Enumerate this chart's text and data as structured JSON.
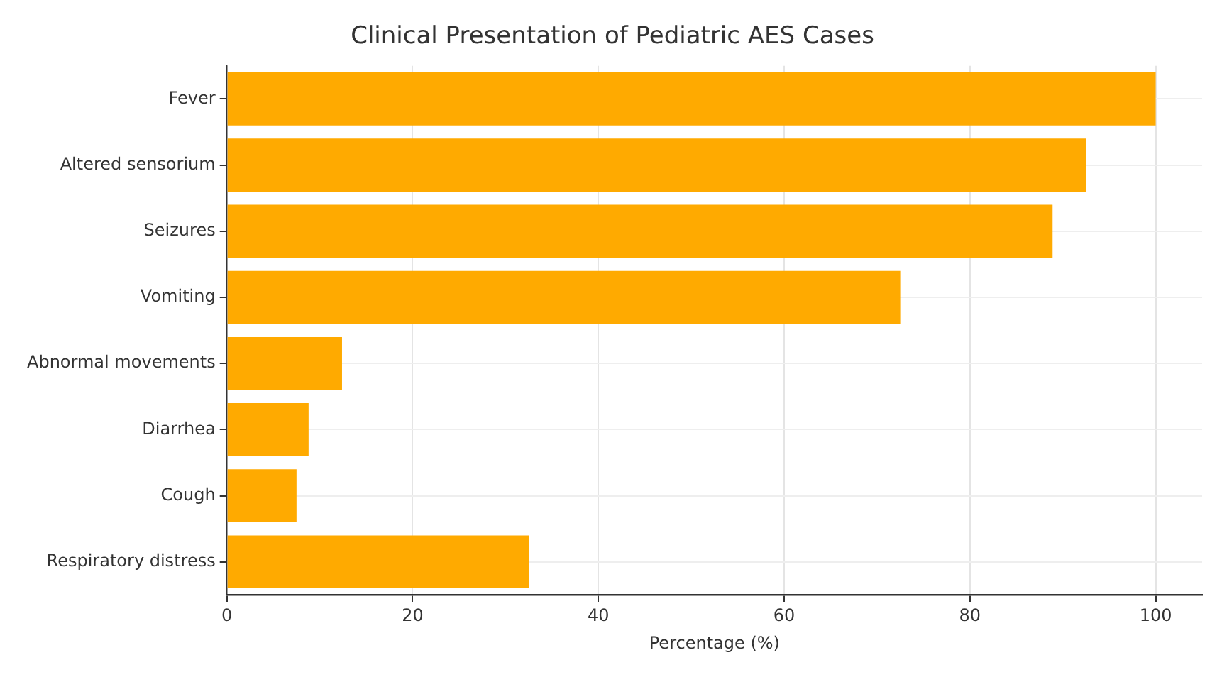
{
  "chart_data": {
    "type": "bar",
    "orientation": "horizontal",
    "title": "Clinical Presentation of Pediatric AES Cases",
    "xlabel": "Percentage (%)",
    "categories": [
      "Fever",
      "Altered sensorium",
      "Seizures",
      "Vomiting",
      "Abnormal movements",
      "Diarrhea",
      "Cough",
      "Respiratory distress"
    ],
    "values": [
      100,
      92.5,
      88.9,
      72.5,
      12.4,
      8.8,
      7.5,
      32.5
    ],
    "color": "#ffaa00",
    "xlim": [
      0,
      105
    ],
    "xticks": [
      0,
      20,
      40,
      60,
      80,
      100
    ],
    "grid": true
  }
}
